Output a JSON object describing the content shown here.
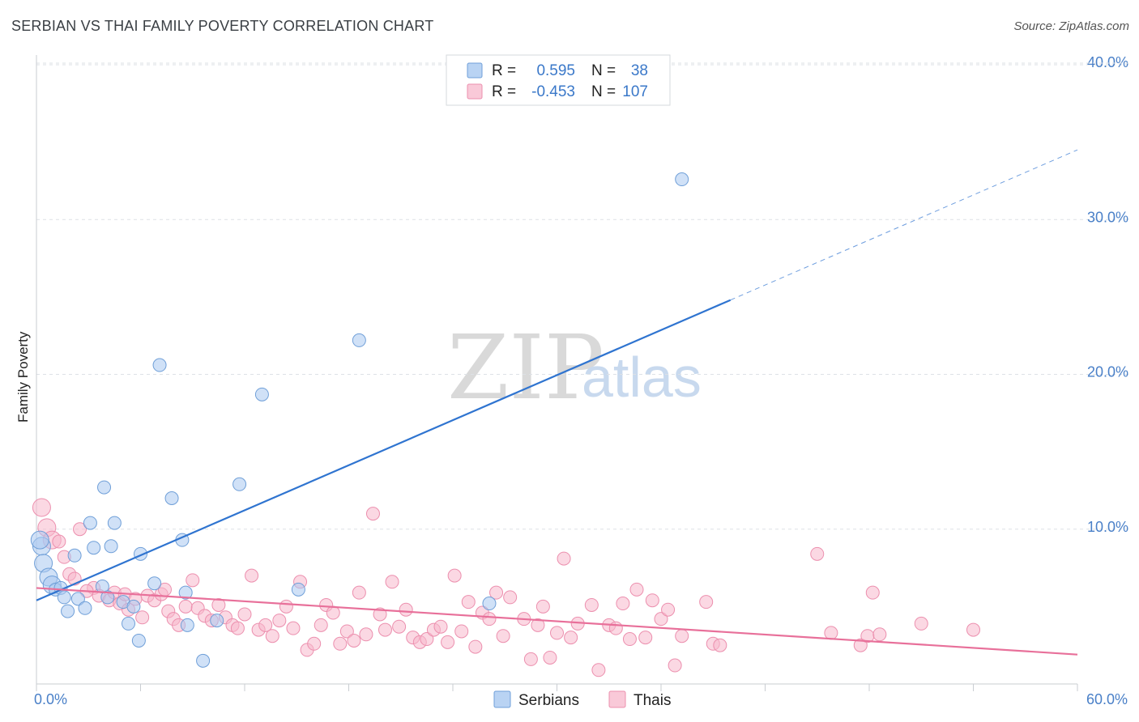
{
  "header": {
    "title": "SERBIAN VS THAI FAMILY POVERTY CORRELATION CHART",
    "source": "Source: ZipAtlas.com"
  },
  "watermark": {
    "zip": "ZIP",
    "atlas": "atlas"
  },
  "colors": {
    "serbians_fill": "#a9c8f0",
    "serbians_stroke": "#6f9fd8",
    "serbians_line": "#2f74d0",
    "thais_fill": "#f7b8cc",
    "thais_stroke": "#ec8fae",
    "thais_line": "#e8709a",
    "tick_label": "#4a80c8",
    "grid": "#dde1e6"
  },
  "legend": {
    "rows": [
      {
        "r_label": "R =",
        "r_value": "0.595",
        "n_label": "N =",
        "n_value": "38"
      },
      {
        "r_label": "R =",
        "r_value": "-0.453",
        "n_label": "N =",
        "n_value": "107"
      }
    ]
  },
  "bottom_legend": {
    "serbians": "Serbians",
    "thais": "Thais"
  },
  "chart_data": {
    "type": "scatter",
    "title": "SERBIAN VS THAI FAMILY POVERTY CORRELATION CHART",
    "xlabel": "",
    "ylabel": "Family Poverty",
    "xlim": [
      0,
      60
    ],
    "ylim": [
      0,
      40
    ],
    "x_tick_labels": [
      "0.0%",
      "60.0%"
    ],
    "y_ticks": [
      {
        "value": 10,
        "label": "10.0%"
      },
      {
        "value": 20,
        "label": "20.0%"
      },
      {
        "value": 30,
        "label": "30.0%"
      },
      {
        "value": 40,
        "label": "40.0%"
      }
    ],
    "grid": true,
    "legend_position": "top-center",
    "series": [
      {
        "name": "Serbians",
        "r": 0.595,
        "n": 38,
        "trend": {
          "x": [
            0,
            40
          ],
          "y": [
            5.4,
            24.8
          ],
          "dashed_to": [
            60,
            34.5
          ]
        },
        "points": [
          [
            0.3,
            8.9
          ],
          [
            0.4,
            7.8
          ],
          [
            0.7,
            6.9
          ],
          [
            0.9,
            6.4
          ],
          [
            1.1,
            6.1
          ],
          [
            1.4,
            6.2
          ],
          [
            1.6,
            5.6
          ],
          [
            1.8,
            4.7
          ],
          [
            2.2,
            8.3
          ],
          [
            2.4,
            5.5
          ],
          [
            2.8,
            4.9
          ],
          [
            3.1,
            10.4
          ],
          [
            3.3,
            8.8
          ],
          [
            3.8,
            6.3
          ],
          [
            3.9,
            12.7
          ],
          [
            4.1,
            5.6
          ],
          [
            4.3,
            8.9
          ],
          [
            4.5,
            10.4
          ],
          [
            5.0,
            5.3
          ],
          [
            5.3,
            3.9
          ],
          [
            5.6,
            5.0
          ],
          [
            5.9,
            2.8
          ],
          [
            6.0,
            8.4
          ],
          [
            6.8,
            6.5
          ],
          [
            7.1,
            20.6
          ],
          [
            7.8,
            12.0
          ],
          [
            8.4,
            9.3
          ],
          [
            8.6,
            5.9
          ],
          [
            8.7,
            3.8
          ],
          [
            9.6,
            1.5
          ],
          [
            10.4,
            4.1
          ],
          [
            11.7,
            12.9
          ],
          [
            13.0,
            18.7
          ],
          [
            15.1,
            6.1
          ],
          [
            18.6,
            22.2
          ],
          [
            26.1,
            5.2
          ],
          [
            37.2,
            32.6
          ],
          [
            0.2,
            9.3
          ]
        ]
      },
      {
        "name": "Thais",
        "r": -0.453,
        "n": 107,
        "trend": {
          "x": [
            0,
            60
          ],
          "y": [
            6.2,
            1.9
          ]
        },
        "points": [
          [
            0.3,
            11.4
          ],
          [
            0.6,
            10.1
          ],
          [
            0.9,
            9.3
          ],
          [
            1.3,
            9.2
          ],
          [
            1.6,
            8.2
          ],
          [
            1.9,
            7.1
          ],
          [
            2.2,
            6.8
          ],
          [
            2.5,
            10.0
          ],
          [
            3.3,
            6.2
          ],
          [
            3.6,
            5.7
          ],
          [
            4.2,
            5.4
          ],
          [
            4.5,
            5.9
          ],
          [
            4.8,
            5.2
          ],
          [
            5.1,
            5.8
          ],
          [
            5.3,
            4.8
          ],
          [
            5.7,
            5.5
          ],
          [
            6.1,
            4.3
          ],
          [
            6.4,
            5.7
          ],
          [
            6.8,
            5.4
          ],
          [
            7.2,
            5.8
          ],
          [
            7.6,
            4.7
          ],
          [
            7.9,
            4.2
          ],
          [
            8.2,
            3.8
          ],
          [
            8.6,
            5.0
          ],
          [
            9.0,
            6.7
          ],
          [
            9.3,
            4.9
          ],
          [
            9.7,
            4.4
          ],
          [
            10.1,
            4.1
          ],
          [
            10.5,
            5.1
          ],
          [
            10.9,
            4.3
          ],
          [
            11.3,
            3.8
          ],
          [
            11.6,
            3.6
          ],
          [
            12.0,
            4.5
          ],
          [
            12.4,
            7.0
          ],
          [
            12.8,
            3.5
          ],
          [
            13.2,
            3.8
          ],
          [
            13.6,
            3.1
          ],
          [
            14.0,
            4.1
          ],
          [
            14.4,
            5.0
          ],
          [
            14.8,
            3.6
          ],
          [
            15.2,
            6.6
          ],
          [
            15.6,
            2.2
          ],
          [
            16.0,
            2.6
          ],
          [
            16.4,
            3.8
          ],
          [
            16.7,
            5.1
          ],
          [
            17.1,
            4.6
          ],
          [
            17.5,
            2.6
          ],
          [
            17.9,
            3.4
          ],
          [
            18.3,
            2.8
          ],
          [
            18.6,
            5.9
          ],
          [
            19.0,
            3.2
          ],
          [
            19.4,
            11.0
          ],
          [
            19.8,
            4.5
          ],
          [
            20.1,
            3.5
          ],
          [
            20.5,
            6.6
          ],
          [
            20.9,
            3.7
          ],
          [
            21.3,
            4.8
          ],
          [
            21.7,
            3.0
          ],
          [
            22.1,
            2.7
          ],
          [
            22.5,
            2.9
          ],
          [
            22.9,
            3.5
          ],
          [
            23.3,
            3.7
          ],
          [
            23.7,
            2.7
          ],
          [
            24.1,
            7.0
          ],
          [
            24.5,
            3.4
          ],
          [
            24.9,
            5.3
          ],
          [
            25.3,
            2.4
          ],
          [
            25.7,
            4.6
          ],
          [
            26.1,
            4.2
          ],
          [
            26.5,
            5.9
          ],
          [
            26.9,
            3.1
          ],
          [
            27.3,
            5.6
          ],
          [
            28.1,
            4.2
          ],
          [
            28.5,
            1.6
          ],
          [
            28.9,
            3.8
          ],
          [
            29.2,
            5.0
          ],
          [
            29.6,
            1.7
          ],
          [
            30.0,
            3.3
          ],
          [
            30.4,
            8.1
          ],
          [
            30.8,
            3.0
          ],
          [
            31.2,
            3.9
          ],
          [
            32.0,
            5.1
          ],
          [
            32.4,
            0.9
          ],
          [
            33.0,
            3.8
          ],
          [
            33.4,
            3.6
          ],
          [
            33.8,
            5.2
          ],
          [
            34.2,
            2.9
          ],
          [
            34.6,
            6.1
          ],
          [
            35.1,
            3.0
          ],
          [
            35.5,
            5.4
          ],
          [
            36.0,
            4.2
          ],
          [
            36.4,
            4.8
          ],
          [
            36.8,
            1.2
          ],
          [
            37.2,
            3.1
          ],
          [
            38.6,
            5.3
          ],
          [
            39.0,
            2.6
          ],
          [
            39.4,
            2.5
          ],
          [
            45.0,
            8.4
          ],
          [
            45.8,
            3.3
          ],
          [
            47.5,
            2.5
          ],
          [
            47.9,
            3.1
          ],
          [
            48.2,
            5.9
          ],
          [
            48.6,
            3.2
          ],
          [
            51.0,
            3.9
          ],
          [
            54.0,
            3.5
          ],
          [
            2.9,
            6.0
          ],
          [
            7.4,
            6.1
          ]
        ]
      }
    ]
  }
}
